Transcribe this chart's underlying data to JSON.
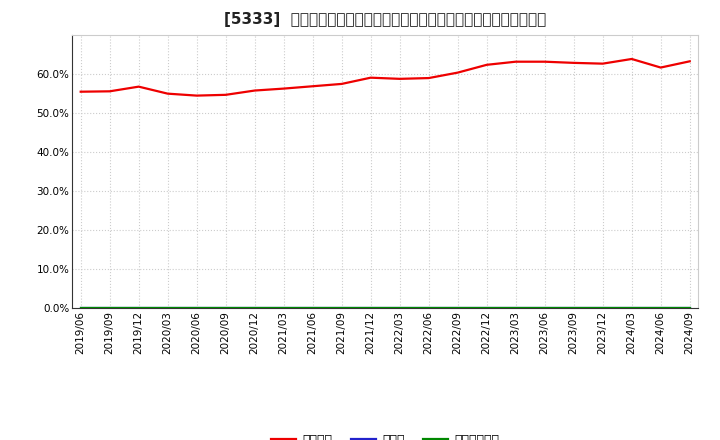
{
  "title": "[5333]  自己資本、のれん、繰延税金資産の総資産に対する比率の推移",
  "x_labels": [
    "2019/06",
    "2019/09",
    "2019/12",
    "2020/03",
    "2020/06",
    "2020/09",
    "2020/12",
    "2021/03",
    "2021/06",
    "2021/09",
    "2021/12",
    "2022/03",
    "2022/06",
    "2022/09",
    "2022/12",
    "2023/03",
    "2023/06",
    "2023/09",
    "2023/12",
    "2024/03",
    "2024/06",
    "2024/09"
  ],
  "jikoshihon": [
    55.5,
    55.6,
    56.8,
    55.0,
    54.5,
    54.7,
    55.8,
    56.3,
    56.9,
    57.5,
    59.1,
    58.8,
    59.0,
    60.4,
    62.4,
    63.2,
    63.2,
    62.9,
    62.7,
    63.9,
    61.7,
    63.3
  ],
  "noren": [
    0,
    0,
    0,
    0,
    0,
    0,
    0,
    0,
    0,
    0,
    0,
    0,
    0,
    0,
    0,
    0,
    0,
    0,
    0,
    0,
    0,
    0
  ],
  "kurinobe": [
    0,
    0,
    0,
    0,
    0,
    0,
    0,
    0,
    0,
    0,
    0,
    0,
    0,
    0,
    0,
    0,
    0,
    0,
    0,
    0,
    0,
    0
  ],
  "jikoshihon_color": "#ee0000",
  "noren_color": "#2222cc",
  "kurinobe_color": "#008800",
  "legend_jikoshihon": "自己資本",
  "legend_noren": "のれん",
  "legend_kurinobe": "繰延税金資産",
  "ylim": [
    0,
    70
  ],
  "yticks": [
    0,
    10,
    20,
    30,
    40,
    50,
    60
  ],
  "background_color": "#ffffff",
  "plot_bg_color": "#ffffff",
  "grid_color": "#cccccc",
  "title_fontsize": 11,
  "axis_fontsize": 7.5,
  "legend_fontsize": 9
}
